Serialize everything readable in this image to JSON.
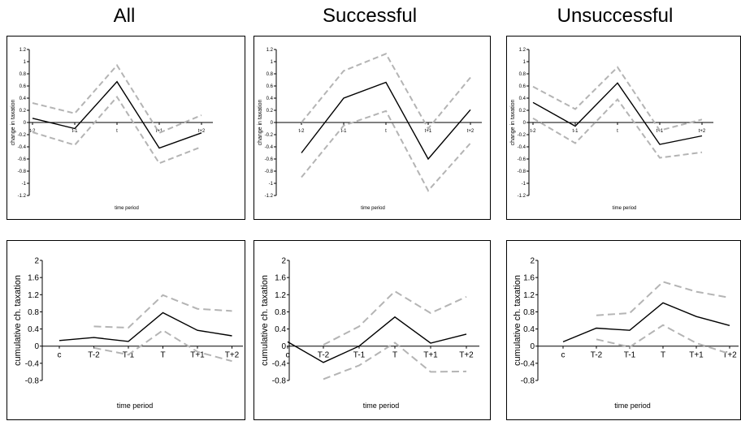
{
  "column_titles": [
    "All",
    "Successful",
    "Unsuccessful"
  ],
  "chart_data": [
    {
      "type": "line",
      "panel": "top-all",
      "xlabel": "time period",
      "ylabel": "change in taxation",
      "categories": [
        "t-2",
        "t-1",
        "t",
        "t+1",
        "t+2"
      ],
      "ylim": [
        -1.2,
        1.2
      ],
      "yticks": [
        "1.2",
        "1",
        "0.8",
        "0.6",
        "0.4",
        "0.2",
        "0",
        "-0.2",
        "-0.4",
        "-0.6",
        "-0.8",
        "-1",
        "-1.2"
      ],
      "series": [
        {
          "values": [
            0.07,
            -0.1,
            0.67,
            -0.42,
            -0.17
          ],
          "color": "#000000",
          "dashed": false
        },
        {
          "values": [
            0.32,
            0.15,
            0.94,
            -0.17,
            0.12
          ],
          "color": "#b4b4b4",
          "dashed": true
        },
        {
          "values": [
            -0.16,
            -0.37,
            0.42,
            -0.67,
            -0.4
          ],
          "color": "#b4b4b4",
          "dashed": true
        }
      ]
    },
    {
      "type": "line",
      "panel": "top-successful",
      "xlabel": "time period",
      "ylabel": "change in taxation",
      "categories": [
        "t-2",
        "t-1",
        "t",
        "t+1",
        "t+2"
      ],
      "ylim": [
        -1.2,
        1.2
      ],
      "yticks": [
        "1.2",
        "1",
        "0.8",
        "0.6",
        "0.4",
        "0.2",
        "0",
        "-0.2",
        "-0.4",
        "-0.6",
        "-0.8",
        "-1",
        "-1.2"
      ],
      "series": [
        {
          "values": [
            -0.5,
            0.4,
            0.66,
            -0.6,
            0.21
          ],
          "color": "#000000",
          "dashed": false
        },
        {
          "values": [
            0.0,
            0.85,
            1.13,
            -0.1,
            0.74
          ],
          "color": "#b4b4b4",
          "dashed": true
        },
        {
          "values": [
            -0.9,
            -0.05,
            0.19,
            -1.12,
            -0.34
          ],
          "color": "#b4b4b4",
          "dashed": true
        }
      ]
    },
    {
      "type": "line",
      "panel": "top-unsuccessful",
      "xlabel": "time period",
      "ylabel": "change in taxation",
      "categories": [
        "t-2",
        "t-1",
        "t",
        "t+1",
        "t+2"
      ],
      "ylim": [
        -1.2,
        1.2
      ],
      "yticks": [
        "1.2",
        "1",
        "0.8",
        "0.6",
        "0.4",
        "0.2",
        "0",
        "-0.2",
        "-0.4",
        "-0.6",
        "-0.8",
        "-1",
        "-1.2"
      ],
      "series": [
        {
          "values": [
            0.33,
            -0.06,
            0.65,
            -0.36,
            -0.22
          ],
          "color": "#000000",
          "dashed": false
        },
        {
          "values": [
            0.59,
            0.22,
            0.91,
            -0.13,
            0.05
          ],
          "color": "#b4b4b4",
          "dashed": true
        },
        {
          "values": [
            0.07,
            -0.34,
            0.38,
            -0.58,
            -0.49
          ],
          "color": "#b4b4b4",
          "dashed": true
        }
      ]
    },
    {
      "type": "line",
      "panel": "bottom-all",
      "xlabel": "time period",
      "ylabel": "cumulative ch. taxation",
      "categories": [
        "c",
        "T-2",
        "T-1",
        "T",
        "T+1",
        "T+2"
      ],
      "ylim": [
        -0.8,
        2
      ],
      "yticks": [
        "2",
        "1.6",
        "1.2",
        "0.8",
        "0.4",
        "0",
        "-0.4",
        "-0.8"
      ],
      "series": [
        {
          "values": [
            0.13,
            0.2,
            0.11,
            0.78,
            0.37,
            0.24
          ],
          "color": "#000000",
          "dashed": false
        },
        {
          "values": [
            null,
            0.46,
            0.43,
            1.19,
            0.87,
            0.82
          ],
          "color": "#b4b4b4",
          "dashed": true
        },
        {
          "values": [
            null,
            -0.04,
            -0.2,
            0.37,
            -0.13,
            -0.35
          ],
          "color": "#b4b4b4",
          "dashed": true
        }
      ]
    },
    {
      "type": "line",
      "panel": "bottom-successful",
      "xlabel": "time period",
      "ylabel": "cumulative ch. taxation",
      "categories": [
        "c",
        "T-2",
        "T-1",
        "T",
        "T+1",
        "T+2"
      ],
      "ylim": [
        -0.8,
        2
      ],
      "yticks": [
        "2",
        "1.6",
        "1.2",
        "0.8",
        "0.4",
        "0",
        "-0.4",
        "-0.8"
      ],
      "series": [
        {
          "values": [
            0.1,
            -0.38,
            0.0,
            0.68,
            0.07,
            0.28
          ],
          "color": "#000000",
          "dashed": false
        },
        {
          "values": [
            null,
            0.03,
            0.46,
            1.28,
            0.77,
            1.15
          ],
          "color": "#b4b4b4",
          "dashed": true
        },
        {
          "values": [
            null,
            -0.77,
            -0.45,
            0.08,
            -0.6,
            -0.59
          ],
          "color": "#b4b4b4",
          "dashed": true
        }
      ]
    },
    {
      "type": "line",
      "panel": "bottom-unsuccessful",
      "xlabel": "time period",
      "ylabel": "cumulative ch. taxation",
      "categories": [
        "c",
        "T-2",
        "T-1",
        "T",
        "T+1",
        "T+2"
      ],
      "ylim": [
        -0.8,
        2
      ],
      "yticks": [
        "2",
        "1.6",
        "1.2",
        "0.8",
        "0.4",
        "0",
        "-0.4",
        "-0.8"
      ],
      "series": [
        {
          "values": [
            0.1,
            0.42,
            0.37,
            1.01,
            0.69,
            0.48
          ],
          "color": "#000000",
          "dashed": false
        },
        {
          "values": [
            null,
            0.72,
            0.77,
            1.5,
            1.27,
            1.13
          ],
          "color": "#b4b4b4",
          "dashed": true
        },
        {
          "values": [
            null,
            0.16,
            -0.02,
            0.49,
            0.07,
            -0.18
          ],
          "color": "#b4b4b4",
          "dashed": true
        }
      ]
    }
  ]
}
